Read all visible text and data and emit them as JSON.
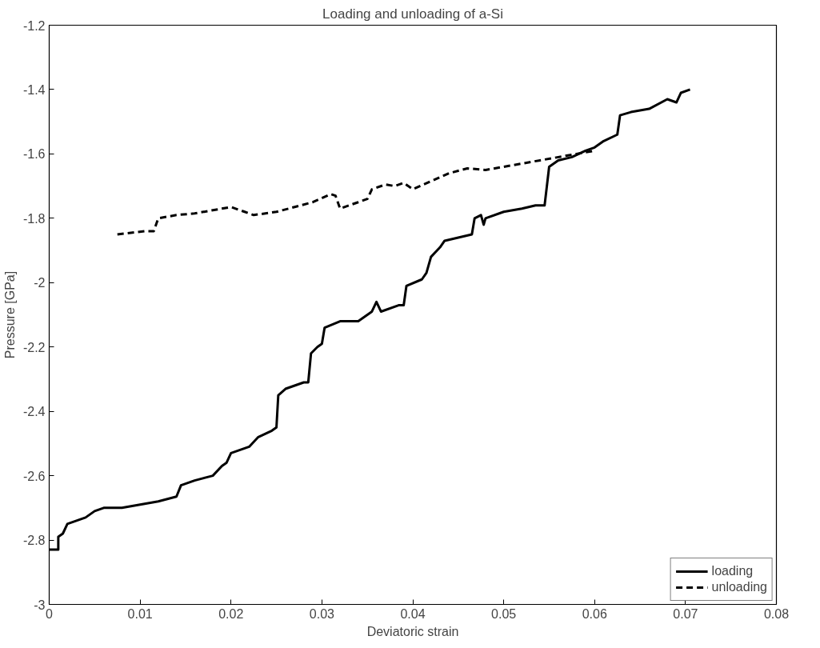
{
  "chart_data": {
    "type": "line",
    "title": "Loading and unloading of a-Si",
    "xlabel": "Deviatoric strain",
    "ylabel": "Pressure [GPa]",
    "xlim": [
      0,
      0.08
    ],
    "xticks": [
      0,
      0.01,
      0.02,
      0.03,
      0.04,
      0.05,
      0.06,
      0.07,
      0.08
    ],
    "ylim": [
      -3,
      -1.2
    ],
    "yticks": [
      -3,
      -2.8,
      -2.6,
      -2.4,
      -2.2,
      -2,
      -1.8,
      -1.6,
      -1.4,
      -1.2
    ],
    "grid": false,
    "legend": "bottom right",
    "marker": "none",
    "series": [
      {
        "name": "loading",
        "color": "#000000",
        "line_style": "solid",
        "x": [
          0,
          0.001,
          0.001,
          0.0015,
          0.002,
          0.003,
          0.004,
          0.005,
          0.006,
          0.008,
          0.01,
          0.012,
          0.014,
          0.0145,
          0.016,
          0.018,
          0.019,
          0.0195,
          0.02,
          0.022,
          0.023,
          0.0245,
          0.025,
          0.0252,
          0.026,
          0.028,
          0.0285,
          0.0288,
          0.0295,
          0.03,
          0.0303,
          0.032,
          0.034,
          0.0355,
          0.036,
          0.0365,
          0.0385,
          0.039,
          0.0393,
          0.041,
          0.0415,
          0.042,
          0.043,
          0.0435,
          0.045,
          0.0465,
          0.0468,
          0.0475,
          0.0478,
          0.048,
          0.05,
          0.052,
          0.0535,
          0.0545,
          0.055,
          0.056,
          0.0575,
          0.059,
          0.06,
          0.061,
          0.0625,
          0.0628,
          0.064,
          0.066,
          0.068,
          0.069,
          0.0695,
          0.0705
        ],
        "values": [
          -2.83,
          -2.83,
          -2.79,
          -2.78,
          -2.75,
          -2.74,
          -2.73,
          -2.71,
          -2.7,
          -2.7,
          -2.69,
          -2.68,
          -2.665,
          -2.63,
          -2.615,
          -2.6,
          -2.57,
          -2.56,
          -2.53,
          -2.51,
          -2.48,
          -2.46,
          -2.45,
          -2.35,
          -2.33,
          -2.31,
          -2.31,
          -2.22,
          -2.2,
          -2.19,
          -2.14,
          -2.12,
          -2.12,
          -2.09,
          -2.06,
          -2.09,
          -2.07,
          -2.07,
          -2.01,
          -1.99,
          -1.97,
          -1.92,
          -1.89,
          -1.87,
          -1.86,
          -1.85,
          -1.8,
          -1.79,
          -1.82,
          -1.8,
          -1.78,
          -1.77,
          -1.76,
          -1.76,
          -1.64,
          -1.62,
          -1.61,
          -1.59,
          -1.58,
          -1.56,
          -1.54,
          -1.48,
          -1.47,
          -1.46,
          -1.43,
          -1.44,
          -1.41,
          -1.4
        ]
      },
      {
        "name": "unloading",
        "color": "#000000",
        "line_style": "dashed",
        "x": [
          0.0075,
          0.0105,
          0.0115,
          0.012,
          0.014,
          0.016,
          0.018,
          0.02,
          0.0215,
          0.0225,
          0.025,
          0.027,
          0.029,
          0.031,
          0.0315,
          0.032,
          0.034,
          0.035,
          0.0355,
          0.037,
          0.038,
          0.039,
          0.04,
          0.042,
          0.044,
          0.046,
          0.048,
          0.05,
          0.054,
          0.058,
          0.06
        ],
        "values": [
          -1.85,
          -1.84,
          -1.84,
          -1.8,
          -1.79,
          -1.785,
          -1.775,
          -1.765,
          -1.78,
          -1.79,
          -1.78,
          -1.765,
          -1.75,
          -1.725,
          -1.73,
          -1.77,
          -1.75,
          -1.74,
          -1.71,
          -1.695,
          -1.7,
          -1.69,
          -1.71,
          -1.685,
          -1.66,
          -1.645,
          -1.65,
          -1.64,
          -1.62,
          -1.6,
          -1.59
        ]
      }
    ]
  }
}
